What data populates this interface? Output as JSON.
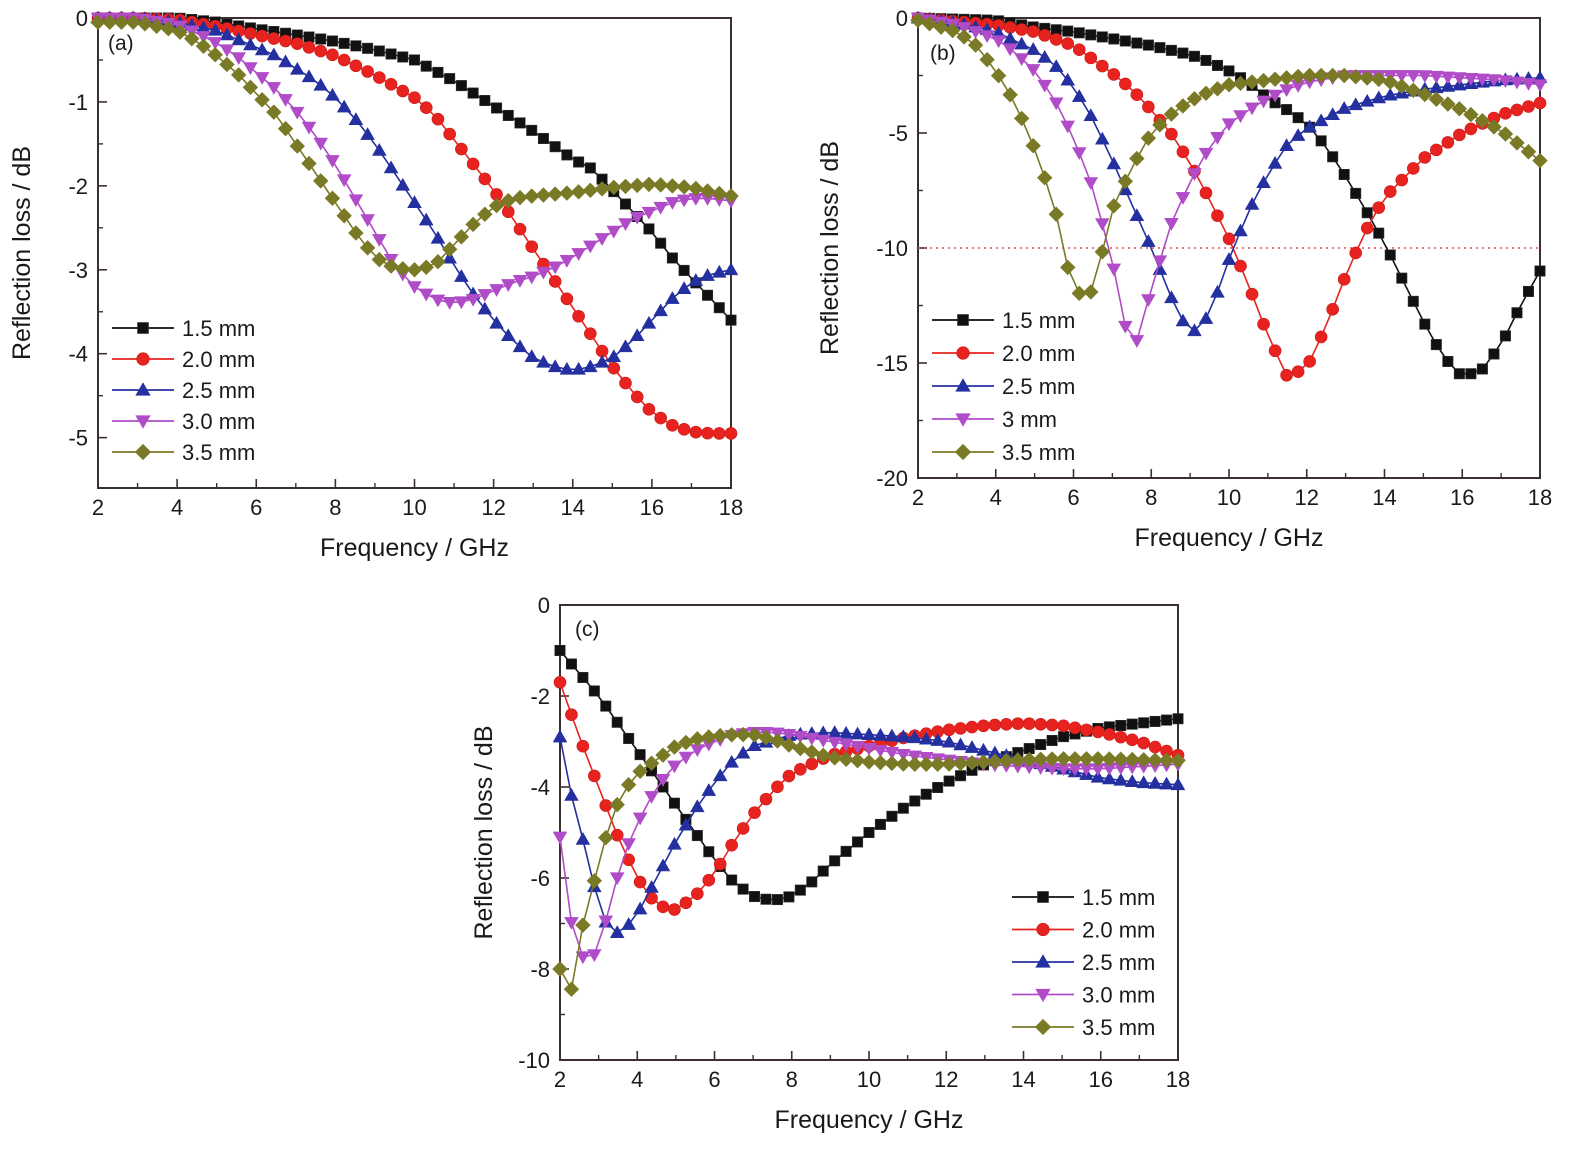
{
  "chart_data": [
    {
      "type": "line",
      "panel_label": "(a)",
      "xlabel": "Frequency / GHz",
      "ylabel": "Reflection loss / dB",
      "xlim": [
        2,
        18
      ],
      "ylim": [
        -5.6,
        0
      ],
      "xticks": [
        2,
        4,
        6,
        8,
        10,
        12,
        14,
        16,
        18
      ],
      "xtick_labels": [
        "2",
        "4",
        "6",
        "8",
        "10",
        "12",
        "14",
        "16",
        "18"
      ],
      "yticks": [
        0,
        -1,
        -2,
        -3,
        -4,
        -5
      ],
      "ytick_labels": [
        "0",
        "-1",
        "-2",
        "-3",
        "-4",
        "-5"
      ],
      "legend_position": "bottom-left",
      "grid": false,
      "reference_line": null,
      "series": [
        {
          "name": "1.5 mm",
          "color": "#111111",
          "marker": "square",
          "x": [
            2,
            3,
            4,
            5,
            6,
            7,
            8,
            9,
            10,
            11,
            12,
            13,
            14,
            14.5,
            15,
            15.5,
            16,
            16.5,
            17,
            17.5,
            18
          ],
          "y": [
            0,
            0,
            0,
            -0.05,
            -0.13,
            -0.2,
            -0.28,
            -0.38,
            -0.5,
            -0.75,
            -1.05,
            -1.35,
            -1.68,
            -1.8,
            -2.05,
            -2.3,
            -2.55,
            -2.85,
            -3.1,
            -3.35,
            -3.6
          ]
        },
        {
          "name": "2.0 mm",
          "color": "#e8231f",
          "marker": "circle",
          "x": [
            2,
            3,
            4,
            5,
            6,
            7,
            8,
            9,
            10,
            10.5,
            11,
            11.5,
            12,
            12.5,
            13,
            13.5,
            14,
            14.5,
            15,
            15.5,
            16,
            16.5,
            17,
            17.5,
            18
          ],
          "y": [
            0,
            0,
            -0.02,
            -0.1,
            -0.2,
            -0.3,
            -0.45,
            -0.68,
            -0.95,
            -1.15,
            -1.45,
            -1.75,
            -2.05,
            -2.4,
            -2.75,
            -3.1,
            -3.45,
            -3.8,
            -4.15,
            -4.45,
            -4.7,
            -4.85,
            -4.93,
            -4.95,
            -4.95
          ]
        },
        {
          "name": "2.5 mm",
          "color": "#2430a0",
          "marker": "triangle-up",
          "x": [
            2,
            3,
            4,
            5,
            6,
            6.5,
            7,
            7.5,
            8,
            8.5,
            9,
            9.5,
            10,
            10.5,
            11,
            11.5,
            12,
            12.5,
            13,
            13.5,
            14,
            14.5,
            15,
            15.5,
            16,
            16.5,
            17,
            17.5,
            18
          ],
          "y": [
            0,
            0,
            -0.05,
            -0.15,
            -0.35,
            -0.45,
            -0.6,
            -0.75,
            -0.95,
            -1.2,
            -1.5,
            -1.85,
            -2.2,
            -2.55,
            -2.95,
            -3.3,
            -3.6,
            -3.85,
            -4.05,
            -4.15,
            -4.2,
            -4.15,
            -4.05,
            -3.85,
            -3.6,
            -3.35,
            -3.15,
            -3.05,
            -3.0
          ]
        },
        {
          "name": "3.0 mm",
          "color": "#b04cc8",
          "marker": "triangle-down",
          "x": [
            2,
            3,
            4,
            4.5,
            5,
            5.5,
            6,
            6.5,
            7,
            7.5,
            8,
            8.5,
            9,
            9.5,
            10,
            10.5,
            11,
            11.5,
            12,
            12.5,
            13,
            13.5,
            14,
            14.5,
            15,
            15.5,
            16,
            16.5,
            17,
            17.5,
            18
          ],
          "y": [
            0,
            0,
            -0.08,
            -0.18,
            -0.3,
            -0.45,
            -0.65,
            -0.85,
            -1.1,
            -1.4,
            -1.75,
            -2.15,
            -2.55,
            -2.95,
            -3.2,
            -3.35,
            -3.4,
            -3.35,
            -3.25,
            -3.15,
            -3.08,
            -2.98,
            -2.85,
            -2.7,
            -2.55,
            -2.4,
            -2.3,
            -2.2,
            -2.15,
            -2.15,
            -2.18
          ]
        },
        {
          "name": "3.5 mm",
          "color": "#7a7a26",
          "marker": "diamond",
          "x": [
            2,
            3,
            3.5,
            4,
            4.5,
            5,
            5.5,
            6,
            6.5,
            7,
            7.5,
            8,
            8.5,
            9,
            9.5,
            10,
            10.5,
            11,
            11.5,
            12,
            12.5,
            13,
            14,
            15,
            16,
            17,
            18
          ],
          "y": [
            -0.05,
            -0.05,
            -0.1,
            -0.15,
            -0.28,
            -0.45,
            -0.65,
            -0.9,
            -1.15,
            -1.5,
            -1.85,
            -2.2,
            -2.55,
            -2.85,
            -2.98,
            -3.0,
            -2.95,
            -2.7,
            -2.45,
            -2.25,
            -2.15,
            -2.12,
            -2.08,
            -2.02,
            -1.98,
            -2.02,
            -2.12
          ]
        }
      ]
    },
    {
      "type": "line",
      "panel_label": "(b)",
      "xlabel": "Frequency / GHz",
      "ylabel": "Reflection loss / dB",
      "xlim": [
        2,
        18
      ],
      "ylim": [
        -20,
        0
      ],
      "xticks": [
        2,
        4,
        6,
        8,
        10,
        12,
        14,
        16,
        18
      ],
      "xtick_labels": [
        "2",
        "4",
        "6",
        "8",
        "10",
        "12",
        "14",
        "16",
        "18"
      ],
      "yticks": [
        0,
        -5,
        -10,
        -15,
        -20
      ],
      "ytick_labels": [
        "0",
        "-5",
        "-10",
        "-15",
        "-20"
      ],
      "legend_position": "bottom-left",
      "grid": false,
      "reference_line": {
        "y": -10,
        "color": "#e05050",
        "style": "dotted"
      },
      "series": [
        {
          "name": "1.5 mm",
          "color": "#111111",
          "marker": "square",
          "x": [
            2,
            4,
            5,
            6,
            7,
            8,
            9,
            9.5,
            10,
            10.5,
            11,
            11.5,
            12,
            12.5,
            13,
            13.5,
            14,
            14.5,
            15,
            15.5,
            16,
            16.5,
            17,
            17.5,
            18
          ],
          "y": [
            0,
            -0.1,
            -0.4,
            -0.6,
            -0.9,
            -1.2,
            -1.6,
            -1.9,
            -2.3,
            -2.8,
            -3.5,
            -4.0,
            -4.6,
            -5.6,
            -6.9,
            -8.3,
            -9.8,
            -11.5,
            -13.2,
            -14.7,
            -15.6,
            -15.3,
            -14.2,
            -12.5,
            -11.0
          ]
        },
        {
          "name": "2.0 mm",
          "color": "#e8231f",
          "marker": "circle",
          "x": [
            2,
            4,
            5,
            6,
            6.5,
            7,
            7.5,
            8,
            8.5,
            9,
            9.5,
            10,
            10.5,
            11,
            11.5,
            12,
            12.5,
            13,
            13.5,
            14,
            15,
            16,
            17,
            18
          ],
          "y": [
            0,
            -0.3,
            -0.6,
            -1.2,
            -1.8,
            -2.4,
            -3.1,
            -4.0,
            -5.0,
            -6.3,
            -7.9,
            -9.6,
            -11.6,
            -13.8,
            -15.6,
            -15.2,
            -13.4,
            -11.2,
            -9.3,
            -7.8,
            -6.1,
            -5.0,
            -4.2,
            -3.7
          ]
        },
        {
          "name": "2.5 mm",
          "color": "#2430a0",
          "marker": "triangle-up",
          "x": [
            2,
            3,
            4,
            5,
            5.5,
            6,
            6.5,
            7,
            7.5,
            8,
            8.5,
            9,
            9.5,
            10,
            10.5,
            11,
            11.5,
            12,
            13,
            14,
            15,
            16,
            17,
            18
          ],
          "y": [
            0,
            -0.2,
            -0.6,
            -1.4,
            -2.0,
            -3.0,
            -4.4,
            -6.2,
            -8.1,
            -10.0,
            -12.1,
            -13.8,
            -12.9,
            -10.5,
            -8.4,
            -6.8,
            -5.5,
            -4.8,
            -3.9,
            -3.4,
            -3.1,
            -2.9,
            -2.7,
            -2.6
          ]
        },
        {
          "name": "3 mm",
          "color": "#b04cc8",
          "marker": "triangle-down",
          "x": [
            2,
            3,
            4,
            4.5,
            5,
            5.5,
            6,
            6.5,
            7,
            7.5,
            8,
            8.5,
            9,
            9.5,
            10,
            10.5,
            11,
            11.5,
            12,
            13,
            14,
            15,
            16,
            17,
            18
          ],
          "y": [
            0,
            -0.3,
            -0.9,
            -1.5,
            -2.3,
            -3.5,
            -5.2,
            -7.4,
            -10.6,
            -14.8,
            -11.8,
            -9.0,
            -7.1,
            -5.6,
            -4.6,
            -4.0,
            -3.5,
            -3.1,
            -2.8,
            -2.5,
            -2.5,
            -2.5,
            -2.6,
            -2.7,
            -2.9
          ]
        },
        {
          "name": "3.5 mm",
          "color": "#7a7a26",
          "marker": "diamond",
          "x": [
            2,
            3,
            3.5,
            4,
            4.5,
            5,
            5.5,
            6,
            6.5,
            7,
            7.5,
            8,
            8.5,
            9,
            9.5,
            10,
            11,
            12,
            13,
            14,
            15,
            16,
            17,
            18
          ],
          "y": [
            -0.1,
            -0.6,
            -1.2,
            -2.3,
            -3.7,
            -5.7,
            -8.1,
            -12.0,
            -11.9,
            -8.3,
            -6.5,
            -5.0,
            -4.2,
            -3.6,
            -3.2,
            -2.9,
            -2.7,
            -2.5,
            -2.5,
            -2.7,
            -3.3,
            -4.0,
            -4.9,
            -6.2
          ]
        }
      ]
    },
    {
      "type": "line",
      "panel_label": "(c)",
      "xlabel": "Frequency / GHz",
      "ylabel": "Reflection loss / dB",
      "xlim": [
        2,
        18
      ],
      "ylim": [
        -10,
        0
      ],
      "xticks": [
        2,
        4,
        6,
        8,
        10,
        12,
        14,
        16,
        18
      ],
      "xtick_labels": [
        "2",
        "4",
        "6",
        "8",
        "10",
        "12",
        "14",
        "16",
        "18"
      ],
      "yticks": [
        0,
        -2,
        -4,
        -6,
        -8,
        -10
      ],
      "ytick_labels": [
        "0",
        "-2",
        "-4",
        "-6",
        "-8",
        "-10"
      ],
      "legend_position": "bottom-right",
      "grid": false,
      "reference_line": null,
      "series": [
        {
          "name": "1.5 mm",
          "color": "#111111",
          "marker": "square",
          "x": [
            2,
            2.5,
            3,
            3.5,
            4,
            4.5,
            5,
            5.5,
            6,
            6.5,
            7,
            7.5,
            8,
            8.5,
            9,
            10,
            11,
            12,
            13,
            14,
            15,
            16,
            17,
            18
          ],
          "y": [
            -1.0,
            -1.5,
            -2.0,
            -2.6,
            -3.2,
            -3.8,
            -4.4,
            -5.0,
            -5.6,
            -6.1,
            -6.4,
            -6.5,
            -6.4,
            -6.1,
            -5.7,
            -5.0,
            -4.4,
            -3.9,
            -3.5,
            -3.2,
            -2.9,
            -2.7,
            -2.6,
            -2.5
          ]
        },
        {
          "name": "2.0 mm",
          "color": "#e8231f",
          "marker": "circle",
          "x": [
            2,
            2.5,
            3,
            3.5,
            4,
            4.5,
            5,
            5.5,
            6,
            6.5,
            7,
            7.5,
            8,
            9,
            10,
            11,
            12,
            13,
            14,
            15,
            16,
            17,
            18
          ],
          "y": [
            -1.7,
            -2.9,
            -4.0,
            -5.1,
            -6.0,
            -6.6,
            -6.7,
            -6.4,
            -5.9,
            -5.2,
            -4.6,
            -4.1,
            -3.7,
            -3.3,
            -3.1,
            -2.9,
            -2.75,
            -2.65,
            -2.6,
            -2.65,
            -2.8,
            -3.0,
            -3.3
          ]
        },
        {
          "name": "2.5 mm",
          "color": "#2430a0",
          "marker": "triangle-up",
          "x": [
            2,
            2.3,
            2.7,
            3,
            3.3,
            3.6,
            4,
            4.5,
            5,
            5.5,
            6,
            6.5,
            7,
            8,
            9,
            10,
            11,
            12,
            13,
            14,
            15,
            16,
            17,
            18
          ],
          "y": [
            -2.9,
            -4.2,
            -5.5,
            -6.6,
            -7.2,
            -7.2,
            -6.8,
            -6.0,
            -5.2,
            -4.5,
            -3.9,
            -3.4,
            -3.1,
            -2.85,
            -2.8,
            -2.85,
            -2.9,
            -3.0,
            -3.2,
            -3.4,
            -3.6,
            -3.8,
            -3.9,
            -3.95
          ]
        },
        {
          "name": "3.0 mm",
          "color": "#b04cc8",
          "marker": "triangle-down",
          "x": [
            2,
            2.3,
            2.7,
            3,
            3.3,
            3.6,
            4,
            4.5,
            5,
            5.5,
            6,
            6.5,
            7,
            7.5,
            8,
            9,
            10,
            11,
            12,
            13,
            14,
            15,
            16,
            17,
            18
          ],
          "y": [
            -5.1,
            -7.0,
            -8.0,
            -7.5,
            -6.6,
            -5.6,
            -4.8,
            -4.0,
            -3.5,
            -3.2,
            -3.0,
            -2.85,
            -2.8,
            -2.8,
            -2.85,
            -3.0,
            -3.15,
            -3.3,
            -3.4,
            -3.5,
            -3.55,
            -3.6,
            -3.6,
            -3.55,
            -3.5
          ]
        },
        {
          "name": "3.5 mm",
          "color": "#7a7a26",
          "marker": "diamond",
          "x": [
            2,
            2.3,
            2.6,
            3,
            3.3,
            3.6,
            4,
            4.5,
            5,
            5.5,
            6,
            6.5,
            7,
            7.5,
            8,
            9,
            10,
            11,
            12,
            13,
            14,
            15,
            16,
            17,
            18
          ],
          "y": [
            -8.0,
            -8.45,
            -7.0,
            -5.7,
            -4.75,
            -4.15,
            -3.7,
            -3.4,
            -3.1,
            -2.95,
            -2.88,
            -2.85,
            -2.85,
            -2.95,
            -3.1,
            -3.35,
            -3.45,
            -3.5,
            -3.5,
            -3.45,
            -3.4,
            -3.38,
            -3.38,
            -3.4,
            -3.42
          ]
        }
      ]
    }
  ]
}
